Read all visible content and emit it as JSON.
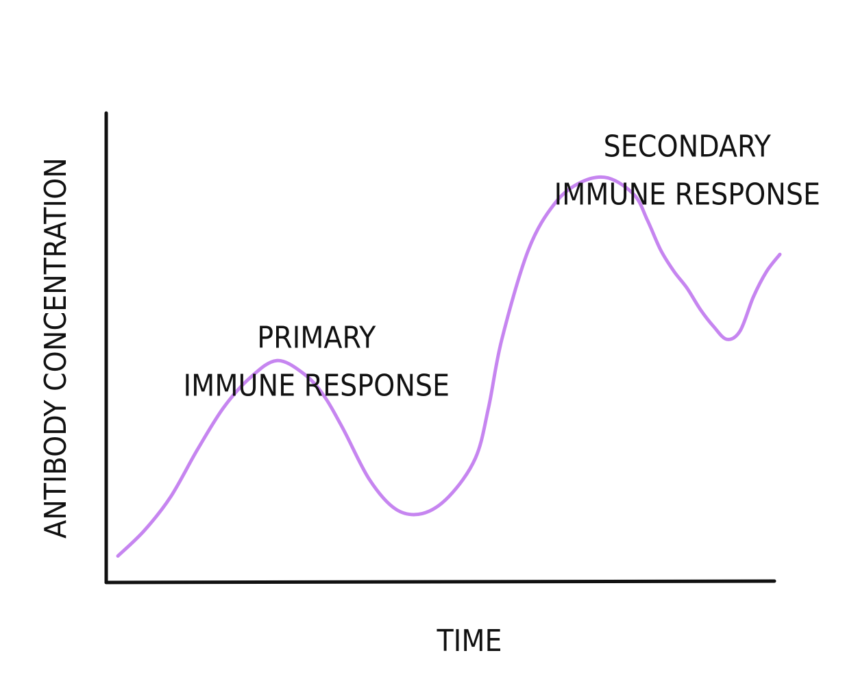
{
  "chart_data": {
    "type": "line",
    "title": "",
    "xlabel": "TIME",
    "ylabel": "ANTIBODY CONCENTRATION",
    "grid": false,
    "legend": "none",
    "line_color": "#c685f0",
    "axis_color": "#111111",
    "xlim": [
      0,
      100
    ],
    "ylim": [
      0,
      100
    ],
    "series": [
      {
        "x": [
          0,
          4,
          8,
          12,
          16,
          20,
          24,
          28,
          31,
          34,
          38,
          42,
          46,
          50,
          54,
          56,
          58,
          62,
          66,
          70,
          74,
          78,
          80,
          82,
          84,
          86,
          88,
          90,
          92,
          94,
          96,
          98,
          100
        ],
        "y": [
          3,
          9,
          17,
          28,
          38,
          45,
          49,
          46,
          41,
          33,
          21,
          14,
          13,
          17,
          26,
          38,
          54,
          75,
          86,
          91,
          92,
          88,
          82,
          75,
          70,
          66,
          61,
          57,
          54,
          56,
          64,
          70,
          74
        ],
        "values_note_free": true
      }
    ],
    "annotations": [
      {
        "lines": [
          "PRIMARY",
          "IMMUNE  RESPONSE"
        ],
        "x": 30,
        "y": 52
      },
      {
        "lines": [
          "SECONDARY",
          "IMMUNE  RESPONSE"
        ],
        "x": 86,
        "y": 97
      }
    ]
  }
}
